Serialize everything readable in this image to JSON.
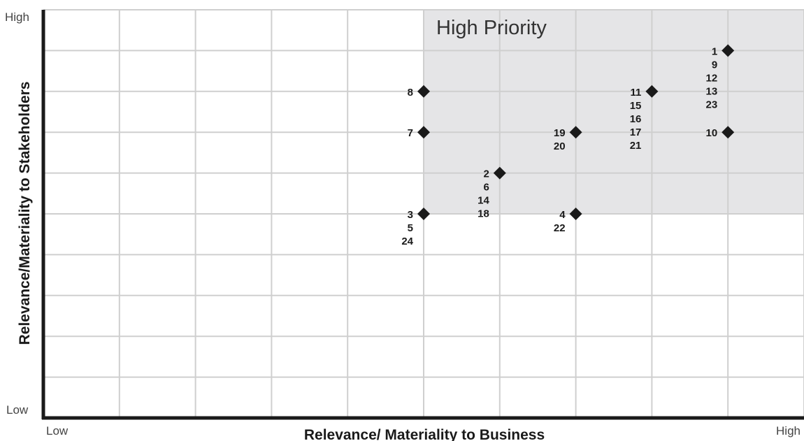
{
  "chart_data": {
    "type": "scatter",
    "title": "",
    "xlabel": "Relevance/ Materiality to Business",
    "ylabel": "Relevance/Materiality to Stakeholders",
    "x_tick_labels": {
      "low": "Low",
      "high": "High"
    },
    "y_tick_labels": {
      "low": "Low",
      "high": "High"
    },
    "xlim": [
      0,
      10
    ],
    "ylim": [
      0,
      10
    ],
    "grid": true,
    "highlight_region": {
      "label": "High Priority",
      "x_range": [
        5,
        10
      ],
      "y_range": [
        5,
        10
      ],
      "color": "#e5e5e7"
    },
    "marker_color": "#1a1a1a",
    "points": [
      {
        "x": 9,
        "y": 9,
        "labels": [
          "1",
          "9",
          "12",
          "13",
          "23"
        ]
      },
      {
        "x": 5,
        "y": 8,
        "labels": [
          "8"
        ]
      },
      {
        "x": 8,
        "y": 8,
        "labels": [
          "11",
          "15",
          "16",
          "17",
          "21"
        ]
      },
      {
        "x": 5,
        "y": 7,
        "labels": [
          "7"
        ]
      },
      {
        "x": 7,
        "y": 7,
        "labels": [
          "19",
          "20"
        ]
      },
      {
        "x": 9,
        "y": 7,
        "labels": [
          "10"
        ]
      },
      {
        "x": 6,
        "y": 6,
        "labels": [
          "2",
          "6",
          "14",
          "18"
        ]
      },
      {
        "x": 5,
        "y": 5,
        "labels": [
          "3",
          "5",
          "24"
        ]
      },
      {
        "x": 7,
        "y": 5,
        "labels": [
          "4",
          "22"
        ]
      }
    ]
  }
}
